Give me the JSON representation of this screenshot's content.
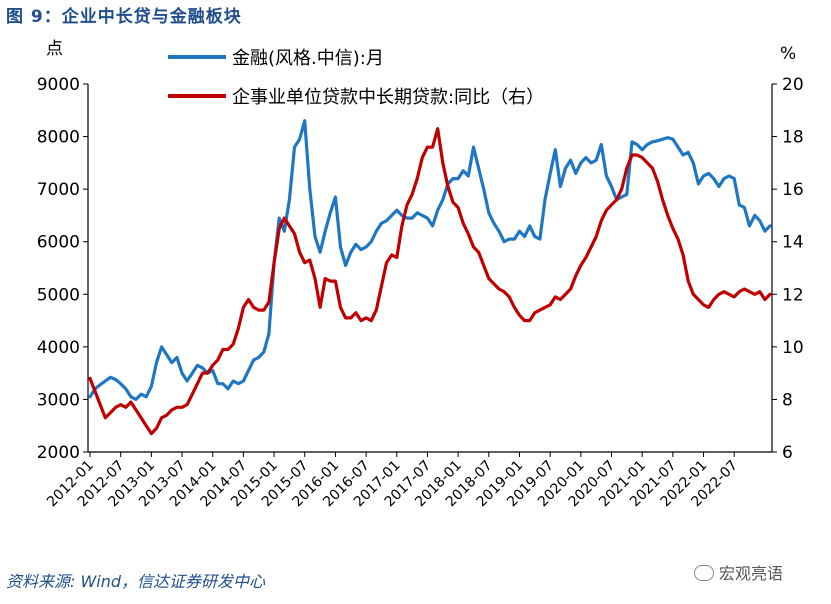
{
  "header": {
    "title": "图 9：企业中长贷与金融板块"
  },
  "axes": {
    "left_unit": "点",
    "right_unit": "%"
  },
  "footer": {
    "source": "资料来源: Wind，信达证券研发中心",
    "watermark": "宏观亮语"
  },
  "chart_data": {
    "type": "line",
    "x_labels": [
      "2012-01",
      "2012-07",
      "2013-01",
      "2013-07",
      "2014-01",
      "2014-07",
      "2015-01",
      "2015-07",
      "2016-01",
      "2016-07",
      "2017-01",
      "2017-07",
      "2018-01",
      "2018-07",
      "2019-01",
      "2019-07",
      "2020-01",
      "2020-07",
      "2021-01",
      "2021-07",
      "2022-01",
      "2022-07"
    ],
    "y_left": {
      "min": 2000,
      "max": 9000,
      "ticks": [
        "2000",
        "3000",
        "4000",
        "5000",
        "6000",
        "7000",
        "8000",
        "9000"
      ]
    },
    "y_right": {
      "min": 6,
      "max": 20,
      "ticks": [
        "6",
        "8",
        "10",
        "12",
        "14",
        "16",
        "18",
        "20"
      ]
    },
    "colors": {
      "finance": "#1f77c4",
      "loan": "#c00000"
    },
    "series": [
      {
        "name": "金融(风格.中信):月",
        "axis": "left",
        "values": [
          3050,
          3200,
          3280,
          3350,
          3420,
          3380,
          3300,
          3200,
          3050,
          3000,
          3100,
          3050,
          3250,
          3700,
          4000,
          3850,
          3700,
          3800,
          3500,
          3350,
          3500,
          3650,
          3600,
          3500,
          3550,
          3300,
          3300,
          3200,
          3350,
          3300,
          3350,
          3550,
          3750,
          3800,
          3900,
          4250,
          5600,
          6450,
          6200,
          6800,
          7800,
          7950,
          8300,
          7000,
          6100,
          5800,
          6200,
          6550,
          6850,
          5900,
          5550,
          5800,
          5950,
          5850,
          5900,
          6000,
          6200,
          6350,
          6400,
          6500,
          6600,
          6500,
          6450,
          6450,
          6550,
          6500,
          6450,
          6300,
          6600,
          6800,
          7100,
          7200,
          7200,
          7350,
          7250,
          7800,
          7400,
          7000,
          6550,
          6350,
          6200,
          6000,
          6050,
          6050,
          6200,
          6100,
          6300,
          6100,
          6050,
          6800,
          7300,
          7750,
          7050,
          7400,
          7550,
          7300,
          7500,
          7600,
          7500,
          7550,
          7850,
          7250,
          7050,
          6800,
          6850,
          6900,
          7900,
          7850,
          7750,
          7850,
          7900,
          7920,
          7950,
          7980,
          7950,
          7800,
          7650,
          7700,
          7500,
          7100,
          7250,
          7300,
          7200,
          7050,
          7200,
          7250,
          7200,
          6700,
          6650,
          6300,
          6500,
          6400,
          6200,
          6300
        ]
      },
      {
        "name": "企事业单位贷款中长期贷款:同比（右）",
        "axis": "right",
        "values": [
          8.8,
          8.3,
          7.8,
          7.3,
          7.5,
          7.7,
          7.8,
          7.7,
          7.9,
          7.6,
          7.3,
          7.0,
          6.7,
          6.9,
          7.3,
          7.4,
          7.6,
          7.7,
          7.7,
          7.8,
          8.2,
          8.6,
          9.0,
          9.0,
          9.3,
          9.5,
          9.9,
          9.9,
          10.1,
          10.7,
          11.5,
          11.8,
          11.5,
          11.4,
          11.4,
          11.7,
          13.2,
          14.5,
          14.9,
          14.6,
          14.3,
          13.6,
          13.2,
          13.3,
          12.6,
          11.5,
          12.6,
          12.5,
          12.5,
          11.5,
          11.1,
          11.1,
          11.3,
          11.0,
          11.1,
          11.0,
          11.4,
          12.3,
          13.2,
          13.5,
          13.4,
          14.6,
          15.4,
          15.8,
          16.4,
          17.2,
          17.6,
          17.6,
          18.3,
          17.0,
          16.1,
          15.5,
          15.3,
          14.7,
          14.3,
          13.8,
          13.6,
          13.1,
          12.6,
          12.4,
          12.2,
          12.1,
          11.9,
          11.5,
          11.2,
          11.0,
          11.0,
          11.3,
          11.4,
          11.5,
          11.6,
          11.9,
          11.8,
          12.0,
          12.2,
          12.7,
          13.1,
          13.4,
          13.8,
          14.2,
          14.8,
          15.2,
          15.4,
          15.6,
          16.0,
          16.8,
          17.3,
          17.3,
          17.2,
          17.0,
          16.8,
          16.3,
          15.6,
          15.0,
          14.5,
          14.1,
          13.5,
          12.5,
          12.0,
          11.8,
          11.6,
          11.5,
          11.8,
          12.0,
          12.1,
          12.0,
          11.9,
          12.1,
          12.2,
          12.1,
          12.0,
          12.1,
          11.8,
          12.0
        ]
      }
    ]
  }
}
